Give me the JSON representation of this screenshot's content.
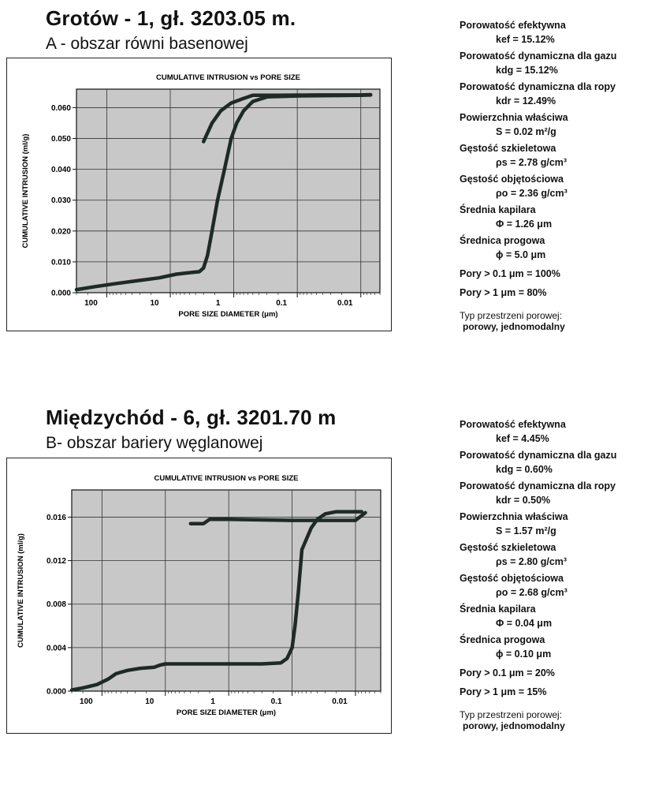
{
  "panels": [
    {
      "title": "Grotów - 1, gł. 3203.05 m.",
      "subtitle": "A - obszar równi basenowej",
      "properties": [
        {
          "name": "Porowatość efektywna",
          "value": "kef = 15.12%"
        },
        {
          "name": "Porowatość dynamiczna dla gazu",
          "value": "kdg = 15.12%"
        },
        {
          "name": "Porowatość dynamiczna dla ropy",
          "value": "kdr = 12.49%"
        },
        {
          "name": "Powierzchnia właściwa",
          "value": "S = 0.02 m²/g"
        },
        {
          "name": "Gęstość szkieletowa",
          "value": "ρs = 2.78 g/cm³"
        },
        {
          "name": "Gęstość objętościowa",
          "value": "ρo = 2.36 g/cm³"
        },
        {
          "name": "Średnia kapilara",
          "value": "Φ = 1.26 μm"
        },
        {
          "name": "Średnica progowa",
          "value": "ϕ = 5.0 μm"
        }
      ],
      "extra": [
        "Pory > 0.1 μm = 100%",
        "Pory > 1 μm = 80%"
      ],
      "pore_type_label": "Typ przestrzeni porowej:",
      "pore_type_value": "porowy, jednomodalny"
    },
    {
      "title": "Międzychód - 6, gł. 3201.70 m",
      "subtitle": "B- obszar bariery węglanowej",
      "properties": [
        {
          "name": "Porowatość efektywna",
          "value": "kef = 4.45%"
        },
        {
          "name": "Porowatość dynamiczna dla gazu",
          "value": "kdg = 0.60%"
        },
        {
          "name": "Porowatość dynamiczna dla ropy",
          "value": "kdr = 0.50%"
        },
        {
          "name": "Powierzchnia właściwa",
          "value": "S = 1.57 m²/g"
        },
        {
          "name": "Gęstość szkieletowa",
          "value": "ρs = 2.80 g/cm³"
        },
        {
          "name": "Gęstość objętościowa",
          "value": "ρo = 2.68 g/cm³"
        },
        {
          "name": "Średnia kapilara",
          "value": "Φ = 0.04 μm"
        },
        {
          "name": "Średnica progowa",
          "value": "ϕ = 0.10 μm"
        }
      ],
      "extra": [
        "Pory > 0.1 μm = 20%",
        "Pory > 1 μm = 15%"
      ],
      "pore_type_label": "Typ przestrzeni porowej:",
      "pore_type_value": "porowy, jednomodalny"
    }
  ],
  "colors": {
    "plot_bg": "#c8c8c8",
    "line": "#1e2a26"
  },
  "chart_data": [
    {
      "type": "line",
      "title": "CUMULATIVE INTRUSION  vs  PORE SIZE",
      "xlabel": "PORE SIZE DIAMETER (μm)",
      "ylabel": "CUMULATIVE  INTRUSION (ml/g)",
      "x_scale": "log-reversed",
      "xlim": [
        300,
        0.005
      ],
      "ylim": [
        0,
        0.066
      ],
      "x_ticks": [
        100,
        10,
        1,
        0.1,
        0.01
      ],
      "x_tick_labels": [
        "100",
        "10",
        "1",
        "0.1",
        "0.01"
      ],
      "y_ticks": [
        0,
        0.01,
        0.02,
        0.03,
        0.04,
        0.05,
        0.06
      ],
      "y_tick_labels": [
        "0.000",
        "0.010",
        "0.020",
        "0.030",
        "0.040",
        "0.050",
        "0.060"
      ],
      "grid": true,
      "series": [
        {
          "values": [
            [
              300,
              0.001
            ],
            [
              150,
              0.002
            ],
            [
              70,
              0.003
            ],
            [
              30,
              0.004
            ],
            [
              15,
              0.0048
            ],
            [
              8,
              0.006
            ],
            [
              5,
              0.0065
            ],
            [
              3.5,
              0.0068
            ],
            [
              3,
              0.008
            ],
            [
              2.6,
              0.012
            ],
            [
              2.2,
              0.02
            ],
            [
              1.8,
              0.03
            ],
            [
              1.4,
              0.04
            ],
            [
              1.1,
              0.05
            ],
            [
              0.9,
              0.055
            ],
            [
              0.7,
              0.059
            ],
            [
              0.5,
              0.062
            ],
            [
              0.3,
              0.0635
            ],
            [
              0.1,
              0.0638
            ],
            [
              0.04,
              0.0639
            ],
            [
              0.01,
              0.064
            ],
            [
              0.007,
              0.0641
            ]
          ]
        },
        {
          "values": [
            [
              3,
              0.049
            ],
            [
              2.2,
              0.055
            ],
            [
              1.6,
              0.059
            ],
            [
              1.1,
              0.0615
            ],
            [
              0.7,
              0.063
            ],
            [
              0.5,
              0.064
            ],
            [
              0.2,
              0.064
            ],
            [
              0.05,
              0.0641
            ],
            [
              0.01,
              0.0641
            ],
            [
              0.007,
              0.0642
            ]
          ]
        }
      ]
    },
    {
      "type": "line",
      "title": "CUMULATIVE INTRUSION  vs  PORE SIZE",
      "xlabel": "PORE SIZE DIAMETER (μm)",
      "ylabel": "CUMULATIVE  INTRUSION (ml/g)",
      "x_scale": "log-reversed",
      "xlim": [
        300,
        0.004
      ],
      "ylim": [
        0,
        0.0185
      ],
      "x_ticks": [
        100,
        10,
        1,
        0.1,
        0.01
      ],
      "x_tick_labels": [
        "100",
        "10",
        "1",
        "0.1",
        "0.01"
      ],
      "y_ticks": [
        0,
        0.004,
        0.008,
        0.012,
        0.016
      ],
      "y_tick_labels": [
        "0.000",
        "0.004",
        "0.008",
        "0.012",
        "0.016"
      ],
      "grid": true,
      "series": [
        {
          "values": [
            [
              300,
              0.0001
            ],
            [
              200,
              0.0003
            ],
            [
              120,
              0.0006
            ],
            [
              80,
              0.0011
            ],
            [
              60,
              0.0016
            ],
            [
              40,
              0.0019
            ],
            [
              25,
              0.0021
            ],
            [
              15,
              0.0022
            ],
            [
              12,
              0.0024
            ],
            [
              10,
              0.0025
            ],
            [
              5,
              0.0025
            ],
            [
              1,
              0.0025
            ],
            [
              0.3,
              0.0025
            ],
            [
              0.15,
              0.0026
            ],
            [
              0.12,
              0.003
            ],
            [
              0.1,
              0.004
            ],
            [
              0.09,
              0.006
            ],
            [
              0.08,
              0.009
            ],
            [
              0.07,
              0.013
            ],
            [
              0.05,
              0.015
            ],
            [
              0.04,
              0.0158
            ],
            [
              0.03,
              0.0163
            ],
            [
              0.02,
              0.0165
            ],
            [
              0.008,
              0.0165
            ]
          ]
        },
        {
          "values": [
            [
              4,
              0.0154
            ],
            [
              2.5,
              0.0154
            ],
            [
              2,
              0.0158
            ],
            [
              1,
              0.0158
            ],
            [
              0.1,
              0.0157
            ],
            [
              0.01,
              0.0157
            ],
            [
              0.007,
              0.0164
            ]
          ]
        }
      ]
    }
  ]
}
